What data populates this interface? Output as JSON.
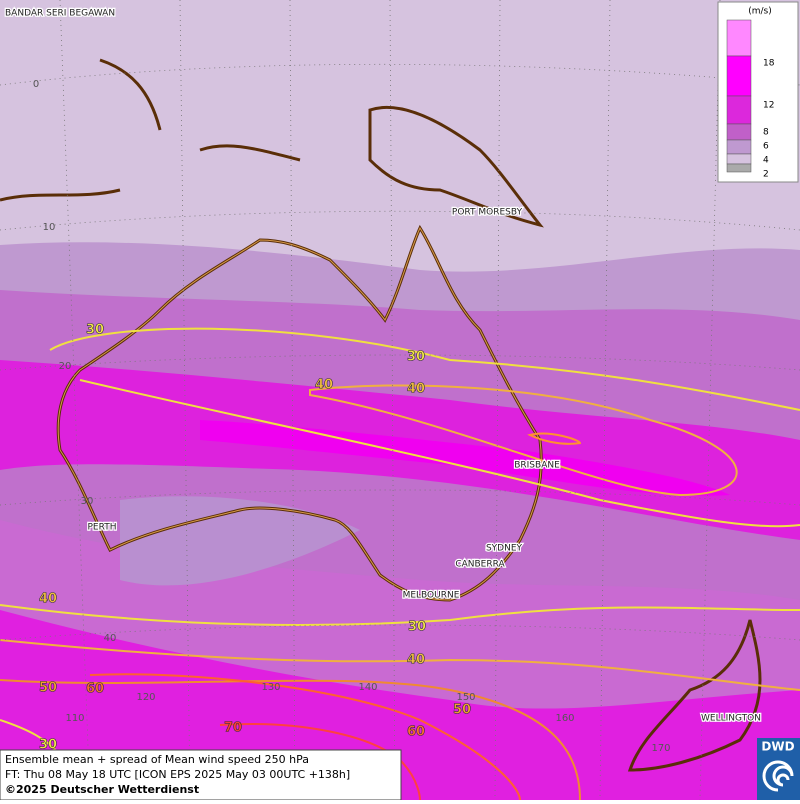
{
  "map": {
    "cities": [
      "BANDAR SERI BEGAWAN",
      "PORT MORESBY",
      "BRISBANE",
      "PERTH",
      "SYDNEY",
      "CANBERRA",
      "MELBOURNE",
      "WELLINGTON"
    ],
    "latitude_labels": [
      "0",
      "10",
      "20",
      "30",
      "40"
    ],
    "longitude_labels": [
      "110",
      "120",
      "130",
      "140",
      "150",
      "160",
      "170"
    ],
    "contour_labels": [
      "30",
      "30",
      "40",
      "40",
      "40",
      "30",
      "40",
      "50",
      "60",
      "70",
      "60",
      "50",
      "30"
    ]
  },
  "legend": {
    "unit": "(m/s)",
    "ticks": [
      "2",
      "4",
      "6",
      "8",
      "12",
      "18"
    ]
  },
  "footer": {
    "lines": [
      "Ensemble mean + spread of Mean wind speed 250 hPa",
      "FT: Thu 08 May 18 UTC [ICON EPS 2025 May 03 00UTC +138h]",
      "©2025 Deutscher Wetterdienst"
    ]
  },
  "logo": "DWD"
}
